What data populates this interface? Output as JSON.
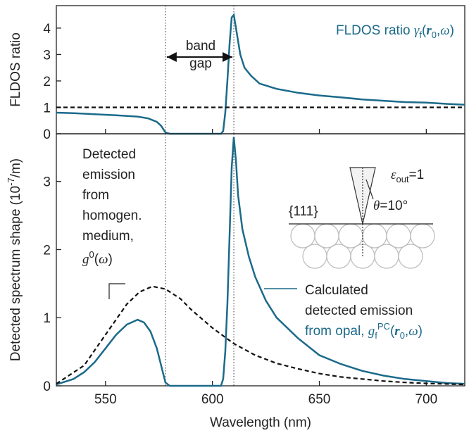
{
  "chart_data": [
    {
      "type": "line",
      "ylabel": "FLDOS ratio",
      "xlim": [
        527,
        718
      ],
      "ylim": [
        0,
        4.85
      ],
      "xticks": [
        550,
        600,
        650,
        700
      ],
      "yticks": [
        0,
        1,
        2,
        3,
        4
      ],
      "show_xtick_labels": false,
      "vlines": [
        578,
        610
      ],
      "series": [
        {
          "color": "#1b6a8a",
          "dash": false,
          "x": [
            527,
            535,
            545,
            555,
            565,
            570,
            574,
            576,
            578,
            580,
            604,
            605,
            606,
            607,
            608,
            609,
            610,
            611,
            613,
            615,
            618,
            622,
            630,
            640,
            650,
            660,
            670,
            680,
            690,
            700,
            710,
            718
          ],
          "values": [
            0.8,
            0.78,
            0.74,
            0.7,
            0.65,
            0.58,
            0.45,
            0.3,
            0.05,
            0,
            0,
            0.1,
            0.8,
            2.0,
            3.4,
            4.4,
            4.5,
            4.0,
            3.0,
            2.5,
            2.2,
            1.9,
            1.7,
            1.55,
            1.45,
            1.38,
            1.3,
            1.25,
            1.2,
            1.18,
            1.13,
            1.1
          ]
        },
        {
          "color": "#111111",
          "dash": true,
          "x": [
            527,
            718
          ],
          "values": [
            1,
            1
          ]
        }
      ],
      "band_label": [
        "band",
        "gap"
      ],
      "annotation": [
        {
          "text": "FLDOS ratio ",
          "style": "n"
        },
        {
          "text": "γ",
          "style": "i"
        },
        {
          "text": "f",
          "style": "sub"
        },
        {
          "text": "(",
          "style": "n"
        },
        {
          "text": "r",
          "style": "b"
        },
        {
          "text": "0",
          "style": "sub"
        },
        {
          "text": ",",
          "style": "n"
        },
        {
          "text": "ω",
          "style": "i"
        },
        {
          "text": ")",
          "style": "n"
        }
      ]
    },
    {
      "type": "line",
      "xlabel": "Wavelength (nm)",
      "ylabel": [
        {
          "text": "Detected spectrum shape (10",
          "style": "n"
        },
        {
          "text": "-7",
          "style": "sup"
        },
        {
          "text": "/m)",
          "style": "n"
        }
      ],
      "xlim": [
        527,
        718
      ],
      "ylim": [
        0,
        3.7
      ],
      "xticks": [
        550,
        600,
        650,
        700
      ],
      "yticks": [
        0,
        1,
        2,
        3
      ],
      "show_xtick_labels": true,
      "vlines": [
        578,
        610
      ],
      "series": [
        {
          "color": "#1b6a8a",
          "dash": false,
          "x": [
            527,
            535,
            540,
            545,
            550,
            555,
            560,
            565,
            568,
            571,
            574,
            576,
            578,
            580,
            604,
            605,
            606,
            607,
            608,
            609,
            610,
            611,
            612,
            614,
            617,
            620,
            625,
            630,
            640,
            650,
            660,
            670,
            680,
            690,
            700,
            710,
            718
          ],
          "values": [
            0.02,
            0.1,
            0.2,
            0.35,
            0.55,
            0.75,
            0.9,
            0.97,
            0.93,
            0.8,
            0.55,
            0.3,
            0.05,
            0,
            0,
            0.1,
            0.5,
            1.2,
            2.2,
            3.2,
            3.65,
            3.3,
            2.8,
            2.3,
            1.9,
            1.6,
            1.25,
            1.0,
            0.7,
            0.45,
            0.32,
            0.22,
            0.15,
            0.1,
            0.07,
            0.04,
            0.03
          ]
        },
        {
          "color": "#111111",
          "dash": true,
          "x": [
            527,
            540,
            550,
            560,
            566,
            572,
            578,
            585,
            590,
            600,
            610,
            620,
            630,
            640,
            650,
            660,
            670,
            680,
            690,
            700,
            718
          ],
          "values": [
            0.03,
            0.3,
            0.75,
            1.2,
            1.38,
            1.46,
            1.42,
            1.28,
            1.12,
            0.85,
            0.62,
            0.45,
            0.33,
            0.25,
            0.18,
            0.13,
            0.1,
            0.07,
            0.05,
            0.035,
            0.02
          ]
        }
      ],
      "dashed_label": [
        "Detected",
        "emission",
        "from",
        "homogen.",
        "medium,"
      ],
      "dashed_math": [
        {
          "text": "g",
          "style": "i"
        },
        {
          "text": "0",
          "style": "sup"
        },
        {
          "text": "(",
          "style": "n"
        },
        {
          "text": "ω",
          "style": "i"
        },
        {
          "text": ")",
          "style": "n"
        }
      ],
      "blue_label": [
        "Calculated",
        "detected emission"
      ],
      "blue_math": [
        {
          "text": "from opal, ",
          "style": "n"
        },
        {
          "text": "g",
          "style": "i"
        },
        {
          "text": "f",
          "style": "sub"
        },
        {
          "text": "PC",
          "style": "sup"
        },
        {
          "text": "(",
          "style": "n"
        },
        {
          "text": "r",
          "style": "b"
        },
        {
          "text": "0",
          "style": "sub"
        },
        {
          "text": ",",
          "style": "n"
        },
        {
          "text": "ω",
          "style": "i"
        },
        {
          "text": ")",
          "style": "n"
        }
      ],
      "inset": {
        "facet": "{111}",
        "eps": [
          {
            "text": "ε",
            "style": "i"
          },
          {
            "text": "out",
            "style": "sub"
          },
          {
            "text": "=1",
            "style": "n"
          }
        ],
        "theta": [
          {
            "text": "θ",
            "style": "i"
          },
          {
            "text": "=10°",
            "style": "n"
          }
        ]
      }
    }
  ]
}
